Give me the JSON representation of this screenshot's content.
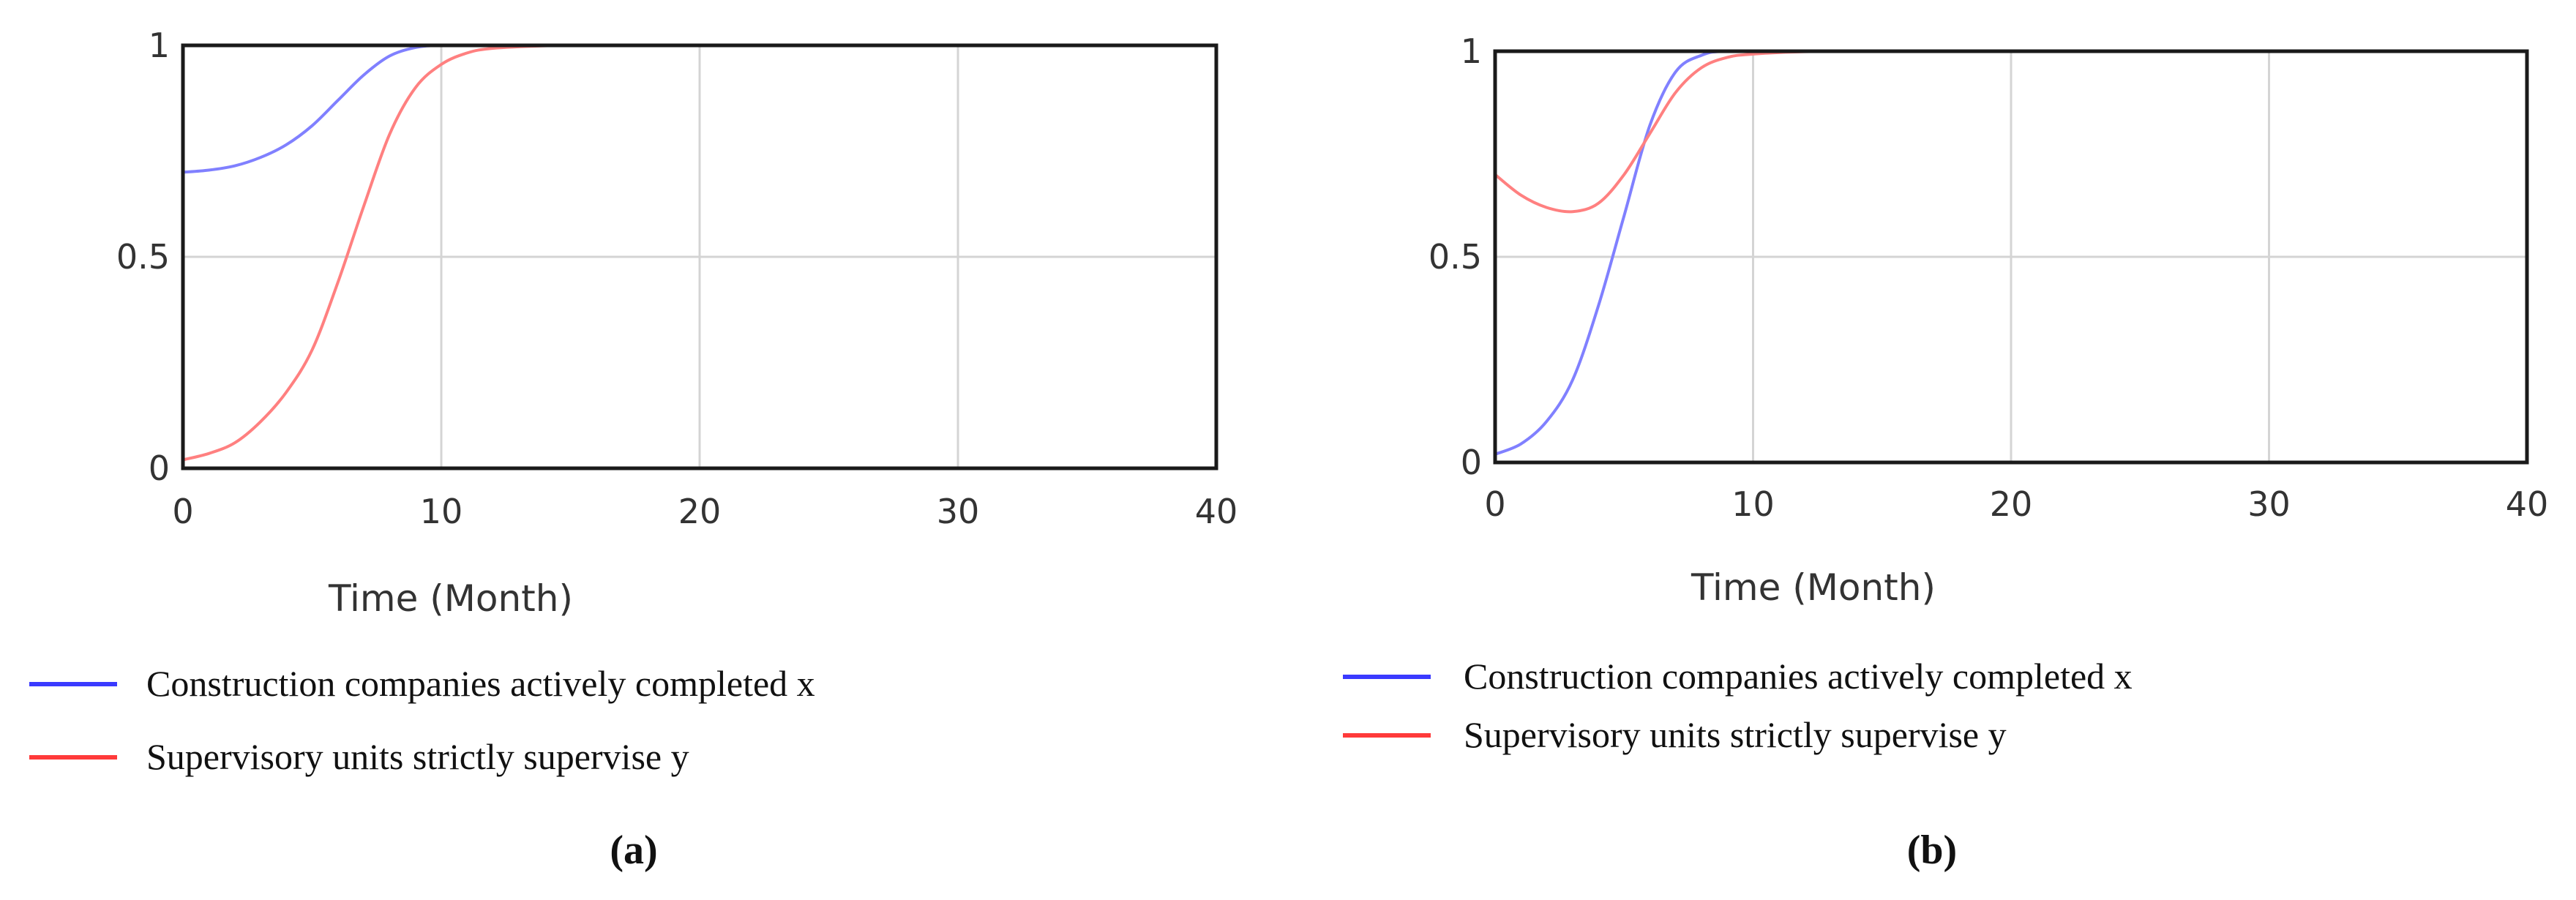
{
  "chart_data": [
    {
      "type": "line",
      "title": "",
      "xlabel": "Time (Month)",
      "ylabel": "",
      "xlim": [
        0,
        40
      ],
      "ylim": [
        0,
        1
      ],
      "xticks": [
        "0",
        "10",
        "20",
        "30",
        "40"
      ],
      "yticks": [
        "0",
        "0.5",
        "1"
      ],
      "grid": true,
      "legend_position": "bottom-left",
      "caption": "(a)",
      "series": [
        {
          "name": "Construction companies actively completed x",
          "color": "#8080ff",
          "legend_color": "#3a3aff",
          "points": [
            [
              0,
              0.7
            ],
            [
              1,
              0.705
            ],
            [
              2,
              0.715
            ],
            [
              3,
              0.735
            ],
            [
              4,
              0.765
            ],
            [
              5,
              0.81
            ],
            [
              6,
              0.87
            ],
            [
              7,
              0.93
            ],
            [
              8,
              0.975
            ],
            [
              9,
              0.995
            ],
            [
              10,
              1.0
            ],
            [
              12,
              1.0
            ],
            [
              20,
              1.0
            ],
            [
              30,
              1.0
            ],
            [
              40,
              1.0
            ]
          ]
        },
        {
          "name": "Supervisory units strictly supervise y",
          "color": "#ff8080",
          "legend_color": "#ff3a3a",
          "points": [
            [
              0,
              0.02
            ],
            [
              1,
              0.035
            ],
            [
              2,
              0.06
            ],
            [
              3,
              0.11
            ],
            [
              4,
              0.18
            ],
            [
              5,
              0.28
            ],
            [
              6,
              0.44
            ],
            [
              7,
              0.62
            ],
            [
              8,
              0.79
            ],
            [
              9,
              0.9
            ],
            [
              10,
              0.955
            ],
            [
              11,
              0.982
            ],
            [
              12,
              0.993
            ],
            [
              14,
              0.999
            ],
            [
              16,
              1.0
            ],
            [
              20,
              1.0
            ],
            [
              30,
              1.0
            ],
            [
              40,
              1.0
            ]
          ]
        }
      ]
    },
    {
      "type": "line",
      "title": "",
      "xlabel": "Time (Month)",
      "ylabel": "",
      "xlim": [
        0,
        40
      ],
      "ylim": [
        0,
        1
      ],
      "xticks": [
        "0",
        "10",
        "20",
        "30",
        "40"
      ],
      "yticks": [
        "0",
        "0.5",
        "1"
      ],
      "grid": true,
      "legend_position": "bottom-left",
      "caption": "(b)",
      "series": [
        {
          "name": "Construction companies actively completed x",
          "color": "#8080ff",
          "legend_color": "#3a3aff",
          "points": [
            [
              0,
              0.02
            ],
            [
              1,
              0.045
            ],
            [
              2,
              0.1
            ],
            [
              3,
              0.2
            ],
            [
              4,
              0.38
            ],
            [
              5,
              0.6
            ],
            [
              6,
              0.82
            ],
            [
              7,
              0.95
            ],
            [
              8,
              0.99
            ],
            [
              9,
              1.0
            ],
            [
              12,
              1.0
            ],
            [
              20,
              1.0
            ],
            [
              30,
              1.0
            ],
            [
              40,
              1.0
            ]
          ]
        },
        {
          "name": "Supervisory units strictly supervise y",
          "color": "#ff8080",
          "legend_color": "#ff3a3a",
          "points": [
            [
              0,
              0.7
            ],
            [
              1,
              0.65
            ],
            [
              2,
              0.62
            ],
            [
              3,
              0.61
            ],
            [
              4,
              0.63
            ],
            [
              5,
              0.7
            ],
            [
              6,
              0.8
            ],
            [
              7,
              0.9
            ],
            [
              8,
              0.96
            ],
            [
              9,
              0.985
            ],
            [
              10,
              0.993
            ],
            [
              12,
              0.999
            ],
            [
              15,
              1.0
            ],
            [
              20,
              1.0
            ],
            [
              30,
              1.0
            ],
            [
              40,
              1.0
            ]
          ]
        }
      ]
    }
  ]
}
